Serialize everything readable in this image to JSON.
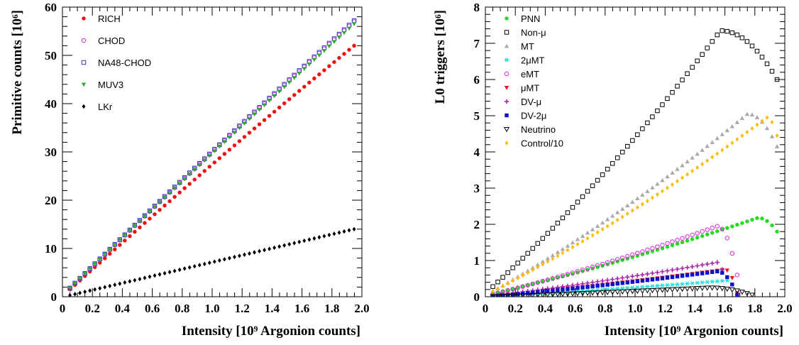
{
  "chart_data": [
    {
      "type": "scatter",
      "xlabel": "Intensity [10⁹ Argonion counts]",
      "ylabel": "Primitive counts [10⁶]",
      "xlim": [
        0,
        2.0
      ],
      "ylim": [
        0,
        60
      ],
      "xticks": [
        "0",
        "0.2",
        "0.4",
        "0.6",
        "0.8",
        "1.0",
        "1.2",
        "1.4",
        "1.6",
        "1.8",
        "2.0"
      ],
      "yticks": [
        "0",
        "10",
        "20",
        "30",
        "40",
        "50",
        "60"
      ],
      "grid": false,
      "legend": "top-left",
      "series": [
        {
          "name": "RICH",
          "marker": "circle-filled",
          "color": "#ee1111",
          "x_start": 0.05,
          "x_step": 0.0333,
          "n": 58,
          "y_at_start": 1.5,
          "y_at_end": 52.0,
          "curve": 0.05
        },
        {
          "name": "CHOD",
          "marker": "circle-open",
          "color": "#dd22dd",
          "x_start": 0.05,
          "x_step": 0.0333,
          "n": 58,
          "y_at_start": 1.7,
          "y_at_end": 57.0,
          "curve": 0.04
        },
        {
          "name": "NA48-CHOD",
          "marker": "square-open",
          "color": "#3333cc",
          "x_start": 0.05,
          "x_step": 0.0333,
          "n": 58,
          "y_at_start": 1.8,
          "y_at_end": 57.2,
          "curve": 0.04
        },
        {
          "name": "MUV3",
          "marker": "triangle-down-filled",
          "color": "#33aa33",
          "x_start": 0.05,
          "x_step": 0.0333,
          "n": 58,
          "y_at_start": 1.8,
          "y_at_end": 56.5,
          "curve": 0.04
        },
        {
          "name": "LKr",
          "marker": "diamond-filled",
          "color": "#000000",
          "x_start": 0.05,
          "x_step": 0.0333,
          "n": 58,
          "y_at_start": 0.3,
          "y_at_end": 14.0,
          "curve": 0.0
        }
      ]
    },
    {
      "type": "scatter",
      "xlabel": "Intensity [10⁹ Argonion counts]",
      "ylabel": "L0 triggers [10⁶]",
      "xlim": [
        0,
        2.0
      ],
      "ylim": [
        0,
        8
      ],
      "xticks": [
        "0",
        "0.2",
        "0.4",
        "0.6",
        "0.8",
        "1.0",
        "1.2",
        "1.4",
        "1.6",
        "1.8",
        "2.0"
      ],
      "yticks": [
        "0",
        "1",
        "2",
        "3",
        "4",
        "5",
        "6",
        "7",
        "8"
      ],
      "grid": false,
      "legend": "top-left",
      "series": [
        {
          "name": "PNN",
          "marker": "circle-filled",
          "color": "#22dd22",
          "x_start": 0.05,
          "x_step": 0.0333,
          "n": 58,
          "y_at_start": 0.08,
          "y_at_end": 1.8,
          "peak_x": 1.82,
          "peak_y": 2.18
        },
        {
          "name": "Non-μ",
          "marker": "square-open",
          "color": "#000000",
          "x_start": 0.05,
          "x_step": 0.0333,
          "n": 58,
          "y_at_start": 0.28,
          "y_at_end": 6.0,
          "peak_x": 1.57,
          "peak_y": 7.35
        },
        {
          "name": "MT",
          "marker": "triangle-up-filled",
          "color": "#aaaaaa",
          "x_start": 0.05,
          "x_step": 0.0333,
          "n": 58,
          "y_at_start": 0.15,
          "y_at_end": 4.15,
          "peak_x": 1.75,
          "peak_y": 5.05
        },
        {
          "name": "2μMT",
          "marker": "star",
          "color": "#22dddd",
          "x_start": 0.05,
          "x_step": 0.0333,
          "n": 48,
          "y_at_start": 0.01,
          "y_at_end": 0.25,
          "peak_x": 1.62,
          "peak_y": 0.45
        },
        {
          "name": "eMT",
          "marker": "circle-open",
          "color": "#dd22dd",
          "x_start": 0.05,
          "x_step": 0.0333,
          "n": 50,
          "y_at_start": 0.07,
          "y_at_end": 0.6,
          "peak_x": 1.55,
          "peak_y": 1.95
        },
        {
          "name": "μMT",
          "marker": "triangle-down-filled",
          "color": "#ee1111",
          "x_start": 0.05,
          "x_step": 0.0333,
          "n": 50,
          "y_at_start": 0.02,
          "y_at_end": 0.1,
          "peak_x": 1.6,
          "peak_y": 0.75
        },
        {
          "name": "DV-μ",
          "marker": "plus",
          "color": "#aa22aa",
          "x_start": 0.05,
          "x_step": 0.0333,
          "n": 47,
          "y_at_start": 0.03,
          "y_at_end": 0.75,
          "peak_x": 1.55,
          "peak_y": 0.95
        },
        {
          "name": "DV-2μ",
          "marker": "square-filled",
          "color": "#1111cc",
          "x_start": 0.05,
          "x_step": 0.0333,
          "n": 50,
          "y_at_start": 0.01,
          "y_at_end": 0.05,
          "peak_x": 1.55,
          "peak_y": 0.7
        },
        {
          "name": "Neutrino",
          "marker": "triangle-down-open",
          "color": "#000000",
          "x_start": 0.05,
          "x_step": 0.0333,
          "n": 53,
          "y_at_start": 0.005,
          "y_at_end": 0.05,
          "peak_x": 1.5,
          "peak_y": 0.25
        },
        {
          "name": "Control/10",
          "marker": "diamond-filled",
          "color": "#ffbb00",
          "x_start": 0.05,
          "x_step": 0.0333,
          "n": 58,
          "y_at_start": 0.15,
          "y_at_end": 4.45,
          "peak_x": 1.88,
          "peak_y": 4.95
        }
      ]
    }
  ]
}
